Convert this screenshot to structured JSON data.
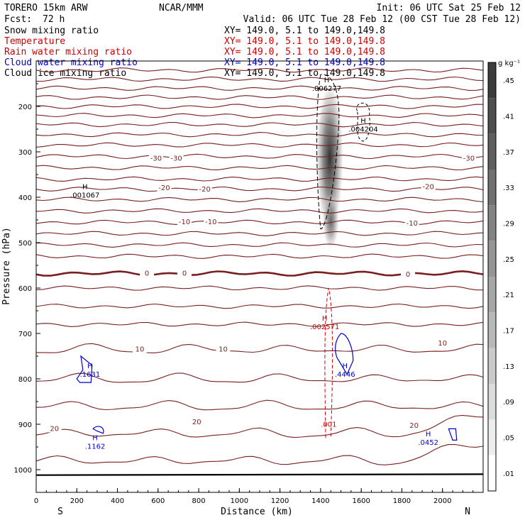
{
  "header": {
    "model": "TORERO  15km ARW",
    "center": "NCAR/MMM",
    "init": "Init: 06 UTC Sat 25 Feb 12",
    "fcst_label": "Fcst:",
    "fcst_value": "72 h",
    "valid": "Valid: 06 UTC Tue 28 Feb 12 (00 CST Tue 28 Feb 12)"
  },
  "fields": [
    {
      "name": "Snow mixing ratio",
      "xy": "XY= 149.0,   5.1 to 149.0,149.8",
      "color": "#000000"
    },
    {
      "name": "Temperature",
      "xy": "XY= 149.0,   5.1 to 149.0,149.8",
      "color": "#cc0000"
    },
    {
      "name": "Rain water mixing ratio",
      "xy": "XY= 149.0,   5.1 to 149.0,149.8",
      "color": "#cc0000"
    },
    {
      "name": "Cloud water mixing ratio",
      "xy": "XY= 149.0,   5.1 to 149.0,149.8",
      "color": "#0000cc"
    },
    {
      "name": "Cloud ice mixing ratio",
      "xy": "XY= 149.0,   5.1 to 149.0,149.8",
      "color": "#000000"
    }
  ],
  "chart_data": {
    "type": "contour",
    "xlabel": "Distance (km)",
    "ylabel": "Pressure (hPa)",
    "x_ticks": [
      0,
      200,
      400,
      600,
      800,
      1000,
      1200,
      1400,
      1600,
      1800,
      2000
    ],
    "y_ticks": [
      200,
      300,
      400,
      500,
      600,
      700,
      800,
      900,
      1000
    ],
    "xlim": [
      0,
      2200
    ],
    "ylim": [
      1050,
      100
    ],
    "left_end": "S",
    "right_end": "N",
    "colorbar": {
      "unit": "g kg⁻¹",
      "labels": [
        ".45",
        ".41",
        ".37",
        ".33",
        ".29",
        ".25",
        ".21",
        ".17",
        ".13",
        ".09",
        ".05",
        ".01"
      ]
    },
    "temperature_labels": [
      {
        "text": "-30",
        "x": 590,
        "p": 315
      },
      {
        "text": "-30",
        "x": 690,
        "p": 315
      },
      {
        "text": "-30",
        "x": 2130,
        "p": 315
      },
      {
        "text": "-20",
        "x": 630,
        "p": 380
      },
      {
        "text": "-20",
        "x": 830,
        "p": 383
      },
      {
        "text": "-20",
        "x": 1930,
        "p": 377
      },
      {
        "text": "-10",
        "x": 730,
        "p": 455
      },
      {
        "text": "-10",
        "x": 860,
        "p": 455
      },
      {
        "text": "-10",
        "x": 1850,
        "p": 458
      },
      {
        "text": "0",
        "x": 545,
        "p": 568
      },
      {
        "text": "0",
        "x": 730,
        "p": 568
      },
      {
        "text": "0",
        "x": 1830,
        "p": 570
      },
      {
        "text": "10",
        "x": 510,
        "p": 735
      },
      {
        "text": "10",
        "x": 920,
        "p": 735
      },
      {
        "text": "10",
        "x": 2000,
        "p": 722
      },
      {
        "text": "20",
        "x": 90,
        "p": 910
      },
      {
        "text": "20",
        "x": 790,
        "p": 895
      },
      {
        "text": "20",
        "x": 1860,
        "p": 903
      }
    ],
    "maxima": [
      {
        "label": "H",
        "value": ".001067",
        "x": 240,
        "p": 385,
        "color": "#000000"
      },
      {
        "label": "H",
        "value": ".006277",
        "x": 1430,
        "p": 150,
        "color": "#000000"
      },
      {
        "label": "H",
        "value": ".004204",
        "x": 1610,
        "p": 240,
        "color": "#000000"
      },
      {
        "label": "H",
        "value": ".002571",
        "x": 1420,
        "p": 675,
        "color": "#cc0000"
      },
      {
        "label": "",
        "value": ".001",
        "x": 1440,
        "p": 890,
        "color": "#cc0000"
      },
      {
        "label": "H",
        "value": ".1631",
        "x": 265,
        "p": 780,
        "color": "#0000cc"
      },
      {
        "label": "H",
        "value": ".4446",
        "x": 1520,
        "p": 780,
        "color": "#0000cc"
      },
      {
        "label": "H",
        "value": ".1162",
        "x": 290,
        "p": 938,
        "color": "#0000cc"
      },
      {
        "label": "H",
        "value": ".0452",
        "x": 1930,
        "p": 930,
        "color": "#0000cc"
      }
    ]
  }
}
